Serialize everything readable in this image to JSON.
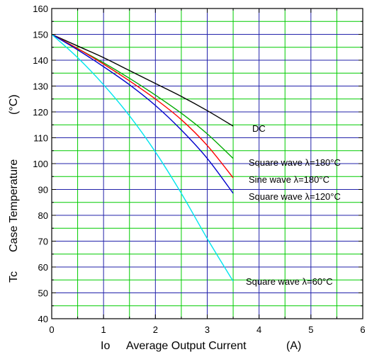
{
  "chart_data": {
    "type": "line",
    "xlabel_prefix": "Io",
    "xlabel": "Average Output Current",
    "xunit": "(A)",
    "ylabel_prefix": "Tc",
    "ylabel": "Case Temperature",
    "yunit": "(°C)",
    "xlim": [
      0,
      6
    ],
    "ylim": [
      40,
      160
    ],
    "x_ticks": [
      "0",
      "1",
      "2",
      "3",
      "4",
      "5",
      "6"
    ],
    "y_ticks": [
      "40",
      "50",
      "60",
      "70",
      "80",
      "90",
      "100",
      "110",
      "120",
      "130",
      "140",
      "150",
      "160"
    ],
    "grid": true,
    "series": [
      {
        "name": "DC",
        "color": "#000000",
        "x": [
          0,
          0.5,
          1,
          1.5,
          2,
          2.5,
          3,
          3.5
        ],
        "y": [
          150,
          145.5,
          141,
          136,
          131,
          126,
          120.5,
          114.5
        ]
      },
      {
        "name": "Square wave  λ=180°C",
        "color": "#00aa00",
        "x": [
          0,
          0.5,
          1,
          1.5,
          2,
          2.5,
          3,
          3.5
        ],
        "y": [
          150,
          144.5,
          139,
          133,
          126.5,
          119.5,
          111.5,
          102
        ]
      },
      {
        "name": "Sine wave  λ=180°C",
        "color": "#ff0000",
        "x": [
          0,
          0.5,
          1,
          1.5,
          2,
          2.5,
          3,
          3.5
        ],
        "y": [
          150,
          144.5,
          138.5,
          132,
          125,
          117,
          107,
          94.5
        ]
      },
      {
        "name": "Square wave  λ=120°C",
        "color": "#0000cc",
        "x": [
          0,
          0.5,
          1,
          1.5,
          2,
          2.5,
          3,
          3.5
        ],
        "y": [
          150,
          144,
          137.5,
          130.5,
          122.5,
          113,
          102,
          88.5
        ]
      },
      {
        "name": "Square wave  λ=60°C",
        "color": "#00e5ee",
        "x": [
          0,
          0.5,
          1,
          1.5,
          2,
          2.5,
          3,
          3.5
        ],
        "y": [
          150,
          141,
          130.5,
          118.5,
          104.5,
          88.5,
          71,
          54.5
        ]
      }
    ]
  }
}
